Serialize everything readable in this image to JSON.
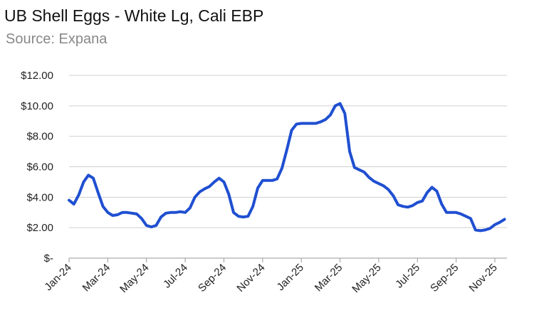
{
  "chart_data": {
    "type": "line",
    "title": "UB Shell Eggs - White Lg, Cali EBP",
    "subtitle": "Source: Expana",
    "categories": [
      "Jan-24",
      null,
      null,
      null,
      null,
      null,
      null,
      null,
      "Mar-24",
      null,
      null,
      null,
      null,
      null,
      null,
      null,
      "May-24",
      null,
      null,
      null,
      null,
      null,
      null,
      null,
      "Jul-24",
      null,
      null,
      null,
      null,
      null,
      null,
      null,
      "Sep-24",
      null,
      null,
      null,
      null,
      null,
      null,
      null,
      "Nov-24",
      null,
      null,
      null,
      null,
      null,
      null,
      null,
      "Jan-25",
      null,
      null,
      null,
      null,
      null,
      null,
      null,
      "Mar-25",
      null,
      null,
      null,
      null,
      null,
      null,
      null,
      "May-25",
      null,
      null,
      null,
      null,
      null,
      null,
      null,
      "Jul-25",
      null,
      null,
      null,
      null,
      null,
      null,
      null,
      "Sep-25",
      null,
      null,
      null,
      null,
      null,
      null,
      null,
      "Nov-25",
      null,
      null
    ],
    "values": [
      3.8,
      3.55,
      4.15,
      5.0,
      5.45,
      5.25,
      4.3,
      3.4,
      3.0,
      2.8,
      2.85,
      3.0,
      3.0,
      2.95,
      2.9,
      2.6,
      2.15,
      2.05,
      2.15,
      2.7,
      2.95,
      3.0,
      3.0,
      3.05,
      3.0,
      3.3,
      4.0,
      4.35,
      4.55,
      4.7,
      5.0,
      5.25,
      5.0,
      4.2,
      3.0,
      2.75,
      2.7,
      2.75,
      3.4,
      4.6,
      5.1,
      5.1,
      5.1,
      5.2,
      5.9,
      7.1,
      8.4,
      8.8,
      8.85,
      8.85,
      8.85,
      8.85,
      8.95,
      9.1,
      9.4,
      10.0,
      10.15,
      9.5,
      7.0,
      5.95,
      5.8,
      5.65,
      5.3,
      5.05,
      4.9,
      4.75,
      4.5,
      4.1,
      3.5,
      3.4,
      3.35,
      3.45,
      3.65,
      3.75,
      4.3,
      4.65,
      4.4,
      3.55,
      3.0,
      3.0,
      3.0,
      2.9,
      2.75,
      2.6,
      1.85,
      1.8,
      1.85,
      1.95,
      2.2,
      2.35,
      2.55
    ],
    "color": "#1f4fd1",
    "ylim": [
      0,
      12
    ],
    "yticks": [
      {
        "value": 0,
        "label": "$-"
      },
      {
        "value": 2,
        "label": "$2.00"
      },
      {
        "value": 4,
        "label": "$4.00"
      },
      {
        "value": 6,
        "label": "$6.00"
      },
      {
        "value": 8,
        "label": "$8.00"
      },
      {
        "value": 10,
        "label": "$10.00"
      },
      {
        "value": 12,
        "label": "$12.00"
      }
    ],
    "grid": true
  }
}
